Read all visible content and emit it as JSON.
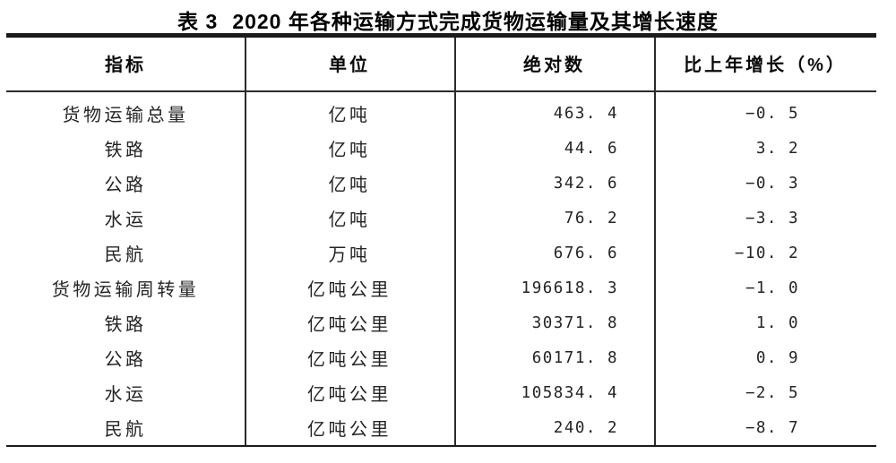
{
  "title": {
    "label": "表 3",
    "text": "2020 年各种运输方式完成货物运输量及其增长速度"
  },
  "table": {
    "columns": [
      "指标",
      "单位",
      "绝对数",
      "比上年增长（%）"
    ],
    "rows": [
      {
        "indicator": "货物运输总量",
        "unit": "亿吨",
        "value": "463. 4",
        "growth": "−0. 5"
      },
      {
        "indicator": "铁路",
        "unit": "亿吨",
        "value": "44. 6",
        "growth": "3. 2"
      },
      {
        "indicator": "公路",
        "unit": "亿吨",
        "value": "342. 6",
        "growth": "−0. 3"
      },
      {
        "indicator": "水运",
        "unit": "亿吨",
        "value": "76. 2",
        "growth": "−3. 3"
      },
      {
        "indicator": "民航",
        "unit": "万吨",
        "value": "676. 6",
        "growth": "−10. 2"
      },
      {
        "indicator": "货物运输周转量",
        "unit": "亿吨公里",
        "value": "196618. 3",
        "growth": "−1. 0"
      },
      {
        "indicator": "铁路",
        "unit": "亿吨公里",
        "value": "30371. 8",
        "growth": "1. 0"
      },
      {
        "indicator": "公路",
        "unit": "亿吨公里",
        "value": "60171. 8",
        "growth": "0. 9"
      },
      {
        "indicator": "水运",
        "unit": "亿吨公里",
        "value": "105834. 4",
        "growth": "−2. 5"
      },
      {
        "indicator": "民航",
        "unit": "亿吨公里",
        "value": "240. 2",
        "growth": "−8. 7"
      }
    ]
  },
  "chart_data": {
    "type": "table",
    "title": "表3 2020年各种运输方式完成货物运输量及其增长速度",
    "columns": [
      "指标",
      "单位",
      "绝对数",
      "比上年增长（%）"
    ],
    "categories": [
      "货物运输总量",
      "铁路",
      "公路",
      "水运",
      "民航",
      "货物运输周转量",
      "铁路",
      "公路",
      "水运",
      "民航"
    ],
    "units": [
      "亿吨",
      "亿吨",
      "亿吨",
      "亿吨",
      "万吨",
      "亿吨公里",
      "亿吨公里",
      "亿吨公里",
      "亿吨公里",
      "亿吨公里"
    ],
    "series": [
      {
        "name": "绝对数",
        "values": [
          463.4,
          44.6,
          342.6,
          76.2,
          676.6,
          196618.3,
          30371.8,
          60171.8,
          105834.4,
          240.2
        ]
      },
      {
        "name": "比上年增长（%）",
        "values": [
          -0.5,
          3.2,
          -0.3,
          -3.3,
          -10.2,
          -1.0,
          1.0,
          0.9,
          -2.5,
          -8.7
        ]
      }
    ]
  },
  "colors": {
    "background": "#ffffff",
    "text": "#242424",
    "heading": "#000000",
    "rule_thick": "#1b1b1b",
    "rule_thin": "#2b2b2b"
  }
}
